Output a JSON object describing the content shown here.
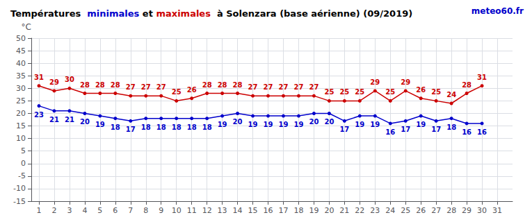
{
  "chart_data": {
    "type": "line",
    "title": "Températures  minimales et maximales  à Solenzara (base aérienne) (09/2019)",
    "x": [
      1,
      2,
      3,
      4,
      5,
      6,
      7,
      8,
      9,
      10,
      11,
      12,
      13,
      14,
      15,
      16,
      17,
      18,
      19,
      20,
      21,
      22,
      23,
      24,
      25,
      26,
      27,
      28,
      29,
      30,
      31
    ],
    "series": [
      {
        "name": "minimales",
        "color": "#0000cc",
        "values": [
          23,
          21,
          21,
          20,
          19,
          18,
          17,
          18,
          18,
          18,
          18,
          18,
          19,
          20,
          19,
          19,
          19,
          19,
          20,
          20,
          17,
          19,
          19,
          16,
          17,
          19,
          17,
          18,
          16,
          16,
          null
        ]
      },
      {
        "name": "maximales",
        "color": "#cc0000",
        "values": [
          31,
          29,
          30,
          28,
          28,
          28,
          27,
          27,
          27,
          25,
          26,
          28,
          28,
          28,
          27,
          27,
          27,
          27,
          27,
          25,
          25,
          25,
          29,
          25,
          29,
          26,
          25,
          24,
          28,
          31,
          null
        ]
      }
    ],
    "xlim": [
      0.5,
      32
    ],
    "xticks": [
      1,
      2,
      3,
      4,
      5,
      6,
      7,
      8,
      9,
      10,
      11,
      12,
      13,
      14,
      15,
      16,
      17,
      18,
      19,
      20,
      21,
      22,
      23,
      24,
      25,
      26,
      27,
      28,
      29,
      30,
      31
    ],
    "ylim": [
      -15,
      50
    ],
    "yticks": [
      -15,
      -10,
      -5,
      0,
      5,
      10,
      15,
      20,
      25,
      30,
      35,
      40,
      45,
      50
    ],
    "ylabel": "°C",
    "grid": true,
    "data_labels": true,
    "marker": "circle",
    "annotations": [
      "meteo60.fr"
    ]
  }
}
